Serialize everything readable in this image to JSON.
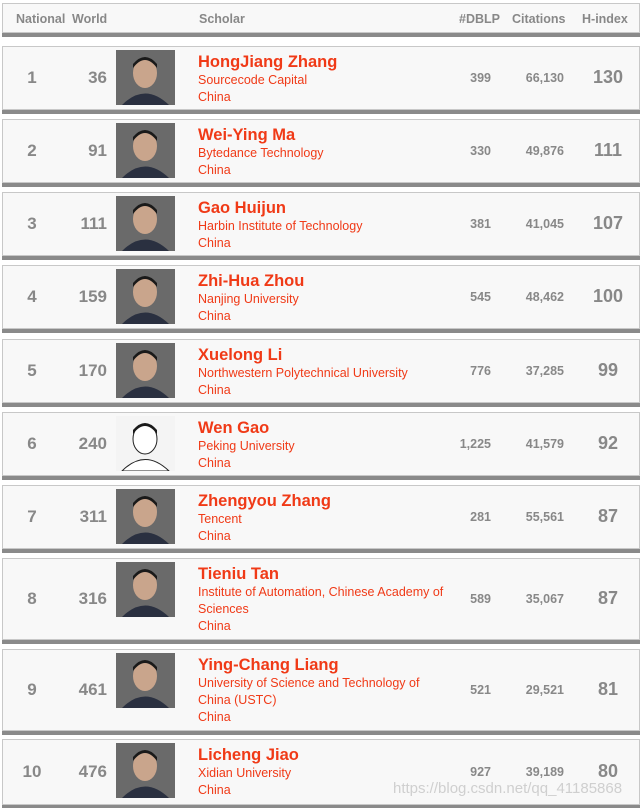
{
  "header": {
    "national": "National",
    "world": "World",
    "scholar": "Scholar",
    "dblp": "#DBLP",
    "citations": "Citations",
    "hindex": "H-index"
  },
  "rows": [
    {
      "national": "1",
      "world": "36",
      "name": "HongJiang Zhang",
      "institution": "Sourcecode Capital",
      "country": "China",
      "dblp": "399",
      "citations": "66,130",
      "hindex": "130"
    },
    {
      "national": "2",
      "world": "91",
      "name": "Wei-Ying Ma",
      "institution": "Bytedance Technology",
      "country": "China",
      "dblp": "330",
      "citations": "49,876",
      "hindex": "111"
    },
    {
      "national": "3",
      "world": "111",
      "name": "Gao Huijun",
      "institution": "Harbin Institute of Technology",
      "country": "China",
      "dblp": "381",
      "citations": "41,045",
      "hindex": "107"
    },
    {
      "national": "4",
      "world": "159",
      "name": "Zhi-Hua Zhou",
      "institution": "Nanjing University",
      "country": "China",
      "dblp": "545",
      "citations": "48,462",
      "hindex": "100"
    },
    {
      "national": "5",
      "world": "170",
      "name": "Xuelong Li",
      "institution": "Northwestern Polytechnical University",
      "country": "China",
      "dblp": "776",
      "citations": "37,285",
      "hindex": "99"
    },
    {
      "national": "6",
      "world": "240",
      "name": "Wen Gao",
      "institution": "Peking University",
      "country": "China",
      "dblp": "1,225",
      "citations": "41,579",
      "hindex": "92"
    },
    {
      "national": "7",
      "world": "311",
      "name": "Zhengyou Zhang",
      "institution": "Tencent",
      "country": "China",
      "dblp": "281",
      "citations": "55,561",
      "hindex": "87"
    },
    {
      "national": "8",
      "world": "316",
      "name": "Tieniu Tan",
      "institution": "Institute of Automation, Chinese Academy of Sciences",
      "country": "China",
      "dblp": "589",
      "citations": "35,067",
      "hindex": "87"
    },
    {
      "national": "9",
      "world": "461",
      "name": "Ying-Chang Liang",
      "institution": "University of Science and Technology of China (USTC)",
      "country": "China",
      "dblp": "521",
      "citations": "29,521",
      "hindex": "81"
    },
    {
      "national": "10",
      "world": "476",
      "name": "Licheng Jiao",
      "institution": "Xidian University",
      "country": "China",
      "dblp": "927",
      "citations": "39,189",
      "hindex": "80"
    }
  ],
  "watermark": "https://blog.csdn.net/qq_41185868",
  "colors": {
    "accent": "#f03a17",
    "number": "#888888"
  }
}
